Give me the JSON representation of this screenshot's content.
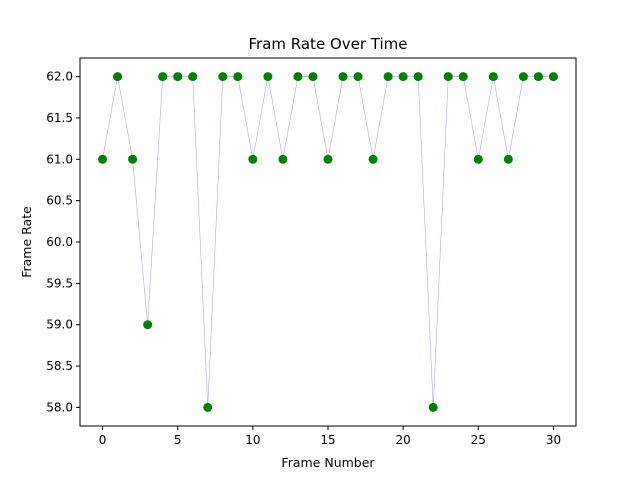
{
  "chart_data": {
    "type": "scatter",
    "title": "Fram Rate Over Time",
    "xlabel": "Frame Number",
    "ylabel": "Frame Rate",
    "xlim": [
      -1.5,
      31.5
    ],
    "ylim": [
      57.775,
      62.225
    ],
    "xticks": [
      0,
      5,
      10,
      15,
      20,
      25,
      30
    ],
    "yticks": [
      58.0,
      58.5,
      59.0,
      59.5,
      60.0,
      60.5,
      61.0,
      61.5,
      62.0
    ],
    "grid": false,
    "legend": "none",
    "series": [
      {
        "x": [
          0,
          1,
          2,
          3,
          4,
          5,
          6,
          7,
          8,
          9,
          10,
          11,
          12,
          13,
          14,
          15,
          16,
          17,
          18,
          19,
          20,
          21,
          22,
          23,
          24,
          25,
          26,
          27,
          28,
          29,
          30
        ],
        "y": [
          61,
          62,
          61,
          59,
          62,
          62,
          62,
          58,
          62,
          62,
          61,
          62,
          61,
          62,
          62,
          61,
          62,
          62,
          61,
          62,
          62,
          62,
          58,
          62,
          62,
          61,
          62,
          61,
          62,
          62,
          62
        ],
        "marker_color": "#008000",
        "line_color": "#aaaaee"
      }
    ]
  }
}
